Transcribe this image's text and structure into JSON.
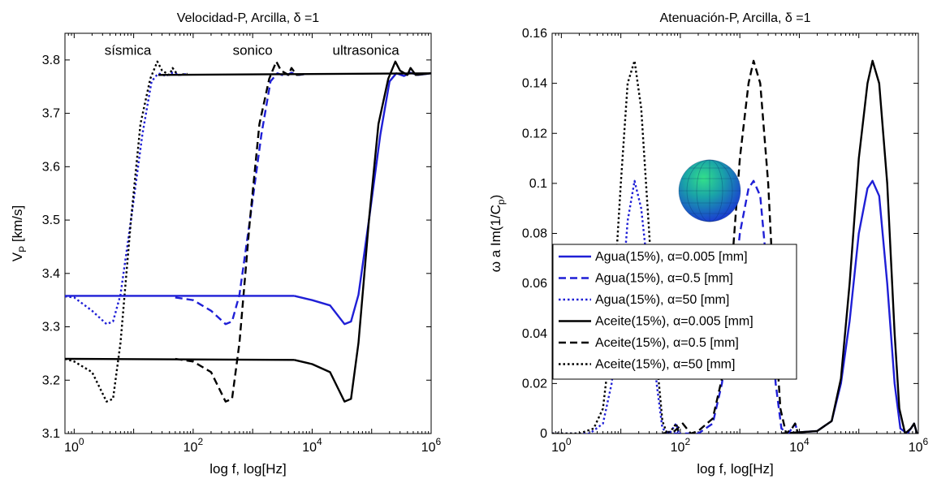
{
  "chart_data": [
    {
      "type": "line",
      "title": "Velocidad-P, Arcilla, δ =1",
      "xlabel": "log f, log[Hz]",
      "ylabel": "V_P [km/s]",
      "xscale": "log",
      "xlim": [
        0.7,
        1000000
      ],
      "ylim": [
        3.1,
        3.85
      ],
      "xticks": [
        {
          "value": 1,
          "base": "10",
          "exp": "0"
        },
        {
          "value": 100,
          "base": "10",
          "exp": "2"
        },
        {
          "value": 10000,
          "base": "10",
          "exp": "4"
        },
        {
          "value": 1000000,
          "base": "10",
          "exp": "6"
        }
      ],
      "yticks": [
        3.1,
        3.2,
        3.3,
        3.4,
        3.5,
        3.6,
        3.7,
        3.8
      ],
      "yticklabels": [
        "3.1",
        "3.2",
        "3.3",
        "3.4",
        "3.5",
        "3.6",
        "3.7",
        "3.8"
      ],
      "annotations": [
        {
          "text": "sísmica",
          "x": 8,
          "y": 3.81
        },
        {
          "text": "sonico",
          "x": 1000,
          "y": 3.81
        },
        {
          "text": "ultrasonica",
          "x": 80000,
          "y": 3.81
        }
      ],
      "series": [
        {
          "color": "#1f1fd6",
          "dash": "solid",
          "points": [
            [
              5000,
              3.358
            ],
            [
              10000,
              3.35
            ],
            [
              20000,
              3.34
            ],
            [
              35000,
              3.305
            ],
            [
              45000,
              3.31
            ],
            [
              60000,
              3.36
            ],
            [
              90000,
              3.5
            ],
            [
              140000,
              3.66
            ],
            [
              200000,
              3.76
            ],
            [
              260000,
              3.775
            ],
            [
              350000,
              3.77
            ],
            [
              450000,
              3.776
            ],
            [
              600000,
              3.772
            ],
            [
              1000000,
              3.775
            ]
          ]
        },
        {
          "color": "#1f1fd6",
          "dash": "dash",
          "points": [
            [
              50,
              3.355
            ],
            [
              100,
              3.35
            ],
            [
              200,
              3.33
            ],
            [
              350,
              3.305
            ],
            [
              450,
              3.31
            ],
            [
              600,
              3.36
            ],
            [
              900,
              3.5
            ],
            [
              1400,
              3.66
            ],
            [
              2000,
              3.76
            ],
            [
              2600,
              3.775
            ],
            [
              3500,
              3.77
            ],
            [
              4500,
              3.776
            ],
            [
              6000,
              3.772
            ],
            [
              8000,
              3.774
            ]
          ]
        },
        {
          "color": "#1f1fd6",
          "dash": "dot",
          "points": [
            [
              0.7,
              3.357
            ],
            [
              1,
              3.355
            ],
            [
              2,
              3.33
            ],
            [
              3.5,
              3.305
            ],
            [
              4.5,
              3.31
            ],
            [
              6,
              3.36
            ],
            [
              9,
              3.5
            ],
            [
              14,
              3.66
            ],
            [
              20,
              3.76
            ],
            [
              26,
              3.775
            ],
            [
              35,
              3.77
            ],
            [
              45,
              3.776
            ],
            [
              60,
              3.772
            ],
            [
              80,
              3.774
            ]
          ]
        },
        {
          "color": "#000000",
          "dash": "solid",
          "points": [
            [
              5000,
              3.238
            ],
            [
              10000,
              3.23
            ],
            [
              20000,
              3.215
            ],
            [
              35000,
              3.16
            ],
            [
              45000,
              3.165
            ],
            [
              60000,
              3.27
            ],
            [
              90000,
              3.5
            ],
            [
              130000,
              3.68
            ],
            [
              190000,
              3.765
            ],
            [
              250000,
              3.797
            ],
            [
              300000,
              3.78
            ],
            [
              400000,
              3.772
            ],
            [
              450000,
              3.785
            ],
            [
              550000,
              3.772
            ],
            [
              1000000,
              3.775
            ]
          ]
        },
        {
          "color": "#000000",
          "dash": "dash",
          "points": [
            [
              50,
              3.24
            ],
            [
              100,
              3.235
            ],
            [
              200,
              3.215
            ],
            [
              350,
              3.16
            ],
            [
              450,
              3.165
            ],
            [
              600,
              3.27
            ],
            [
              900,
              3.5
            ],
            [
              1300,
              3.68
            ],
            [
              1900,
              3.765
            ],
            [
              2500,
              3.797
            ],
            [
              3000,
              3.78
            ],
            [
              4000,
              3.772
            ],
            [
              4500,
              3.785
            ],
            [
              5500,
              3.772
            ],
            [
              8000,
              3.774
            ]
          ]
        },
        {
          "color": "#000000",
          "dash": "dot",
          "points": [
            [
              0.7,
              3.24
            ],
            [
              1,
              3.235
            ],
            [
              2,
              3.215
            ],
            [
              3.5,
              3.16
            ],
            [
              4.5,
              3.165
            ],
            [
              6,
              3.27
            ],
            [
              9,
              3.5
            ],
            [
              13,
              3.68
            ],
            [
              19,
              3.765
            ],
            [
              25,
              3.797
            ],
            [
              30,
              3.78
            ],
            [
              40,
              3.772
            ],
            [
              45,
              3.785
            ],
            [
              55,
              3.772
            ],
            [
              80,
              3.774
            ]
          ]
        },
        {
          "color": "#000000",
          "dash": "solid",
          "points": [
            [
              0.7,
              3.24
            ],
            [
              5000,
              3.238
            ]
          ]
        },
        {
          "color": "#1f1fd6",
          "dash": "solid",
          "points": [
            [
              0.7,
              3.358
            ],
            [
              5000,
              3.358
            ]
          ]
        },
        {
          "color": "#000000",
          "dash": "solid",
          "points": [
            [
              26,
              3.772
            ],
            [
              1000000,
              3.775
            ]
          ]
        }
      ]
    },
    {
      "type": "line",
      "title": "Atenuación-P, Arcilla, δ =1",
      "xlabel": "log f, log[Hz]",
      "ylabel": "ω a Im(1/C_p)",
      "xscale": "log",
      "xlim": [
        0.7,
        1000000
      ],
      "ylim": [
        0,
        0.16
      ],
      "xticks": [
        {
          "value": 1,
          "base": "10",
          "exp": "0"
        },
        {
          "value": 100,
          "base": "10",
          "exp": "2"
        },
        {
          "value": 10000,
          "base": "10",
          "exp": "4"
        },
        {
          "value": 1000000,
          "base": "10",
          "exp": "6"
        }
      ],
      "yticks": [
        0,
        0.02,
        0.04,
        0.06,
        0.08,
        0.1,
        0.12,
        0.14,
        0.16
      ],
      "yticklabels": [
        "0",
        "0.02",
        "0.04",
        "0.06",
        "0.08",
        "0.1",
        "0.12",
        "0.14",
        "0.16"
      ],
      "legend": {
        "position": "center-left",
        "entries": [
          {
            "label": "Agua(15%), α=0.005 [mm]",
            "color": "#1f1fd6",
            "dash": "solid"
          },
          {
            "label": "Agua(15%), α=0.5 [mm]",
            "color": "#1f1fd6",
            "dash": "dash"
          },
          {
            "label": "Agua(15%), α=50 [mm]",
            "color": "#1f1fd6",
            "dash": "dot"
          },
          {
            "label": "Aceite(15%), α=0.005 [mm]",
            "color": "#000000",
            "dash": "solid"
          },
          {
            "label": "Aceite(15%), α=0.5 [mm]",
            "color": "#000000",
            "dash": "dash"
          },
          {
            "label": "Aceite(15%), α=50 [mm]",
            "color": "#000000",
            "dash": "dot"
          }
        ]
      },
      "inset": "sphere-icon",
      "series": [
        {
          "color": "#1f1fd6",
          "dash": "solid",
          "points": [
            [
              5000,
              0
            ],
            [
              20000,
              0.001
            ],
            [
              35000,
              0.005
            ],
            [
              50000,
              0.02
            ],
            [
              70000,
              0.045
            ],
            [
              100000,
              0.08
            ],
            [
              140000,
              0.098
            ],
            [
              170000,
              0.101
            ],
            [
              220000,
              0.095
            ],
            [
              300000,
              0.06
            ],
            [
              400000,
              0.02
            ],
            [
              500000,
              0.002
            ],
            [
              650000,
              0
            ],
            [
              750000,
              0.002
            ],
            [
              850000,
              0.004
            ],
            [
              950000,
              0
            ]
          ]
        },
        {
          "color": "#000000",
          "dash": "solid",
          "points": [
            [
              5000,
              0
            ],
            [
              20000,
              0.001
            ],
            [
              35000,
              0.005
            ],
            [
              50000,
              0.022
            ],
            [
              70000,
              0.06
            ],
            [
              100000,
              0.11
            ],
            [
              140000,
              0.14
            ],
            [
              170000,
              0.149
            ],
            [
              220000,
              0.14
            ],
            [
              300000,
              0.1
            ],
            [
              400000,
              0.04
            ],
            [
              480000,
              0.01
            ],
            [
              600000,
              0
            ],
            [
              750000,
              0.002
            ],
            [
              850000,
              0.004
            ],
            [
              950000,
              0
            ]
          ]
        },
        {
          "color": "#1f1fd6",
          "dash": "dash",
          "points": [
            [
              50,
              0
            ],
            [
              200,
              0
            ],
            [
              350,
              0.004
            ],
            [
              500,
              0.02
            ],
            [
              700,
              0.045
            ],
            [
              1000,
              0.08
            ],
            [
              1400,
              0.098
            ],
            [
              1700,
              0.101
            ],
            [
              2200,
              0.095
            ],
            [
              3000,
              0.06
            ],
            [
              4000,
              0.02
            ],
            [
              5000,
              0.002
            ],
            [
              6500,
              0
            ],
            [
              7500,
              0.002
            ],
            [
              8500,
              0.004
            ],
            [
              9500,
              0
            ]
          ]
        },
        {
          "color": "#000000",
          "dash": "dash",
          "points": [
            [
              50,
              0
            ],
            [
              80,
              0.001
            ],
            [
              110,
              0.004
            ],
            [
              150,
              0
            ],
            [
              200,
              0.001
            ],
            [
              350,
              0.006
            ],
            [
              500,
              0.022
            ],
            [
              700,
              0.06
            ],
            [
              1000,
              0.11
            ],
            [
              1400,
              0.14
            ],
            [
              1700,
              0.149
            ],
            [
              2200,
              0.14
            ],
            [
              3000,
              0.1
            ],
            [
              4000,
              0.04
            ],
            [
              4800,
              0.01
            ],
            [
              6000,
              0
            ],
            [
              7500,
              0.002
            ],
            [
              8500,
              0.004
            ],
            [
              9500,
              0
            ]
          ]
        },
        {
          "color": "#1f1fd6",
          "dash": "dot",
          "points": [
            [
              0.7,
              0
            ],
            [
              3,
              0
            ],
            [
              5,
              0.004
            ],
            [
              7,
              0.02
            ],
            [
              10,
              0.05
            ],
            [
              13,
              0.085
            ],
            [
              17,
              0.101
            ],
            [
              22,
              0.09
            ],
            [
              30,
              0.06
            ],
            [
              40,
              0.02
            ],
            [
              50,
              0.002
            ],
            [
              65,
              0
            ],
            [
              75,
              0.002
            ],
            [
              85,
              0.004
            ],
            [
              95,
              0
            ]
          ]
        },
        {
          "color": "#000000",
          "dash": "dot",
          "points": [
            [
              0.7,
              0
            ],
            [
              2,
              0
            ],
            [
              3.5,
              0.002
            ],
            [
              5,
              0.01
            ],
            [
              7,
              0.04
            ],
            [
              10,
              0.1
            ],
            [
              13,
              0.14
            ],
            [
              17,
              0.149
            ],
            [
              22,
              0.13
            ],
            [
              30,
              0.08
            ],
            [
              40,
              0.03
            ],
            [
              50,
              0.005
            ],
            [
              60,
              0
            ],
            [
              75,
              0.002
            ],
            [
              85,
              0.004
            ],
            [
              95,
              0
            ]
          ]
        }
      ]
    }
  ]
}
